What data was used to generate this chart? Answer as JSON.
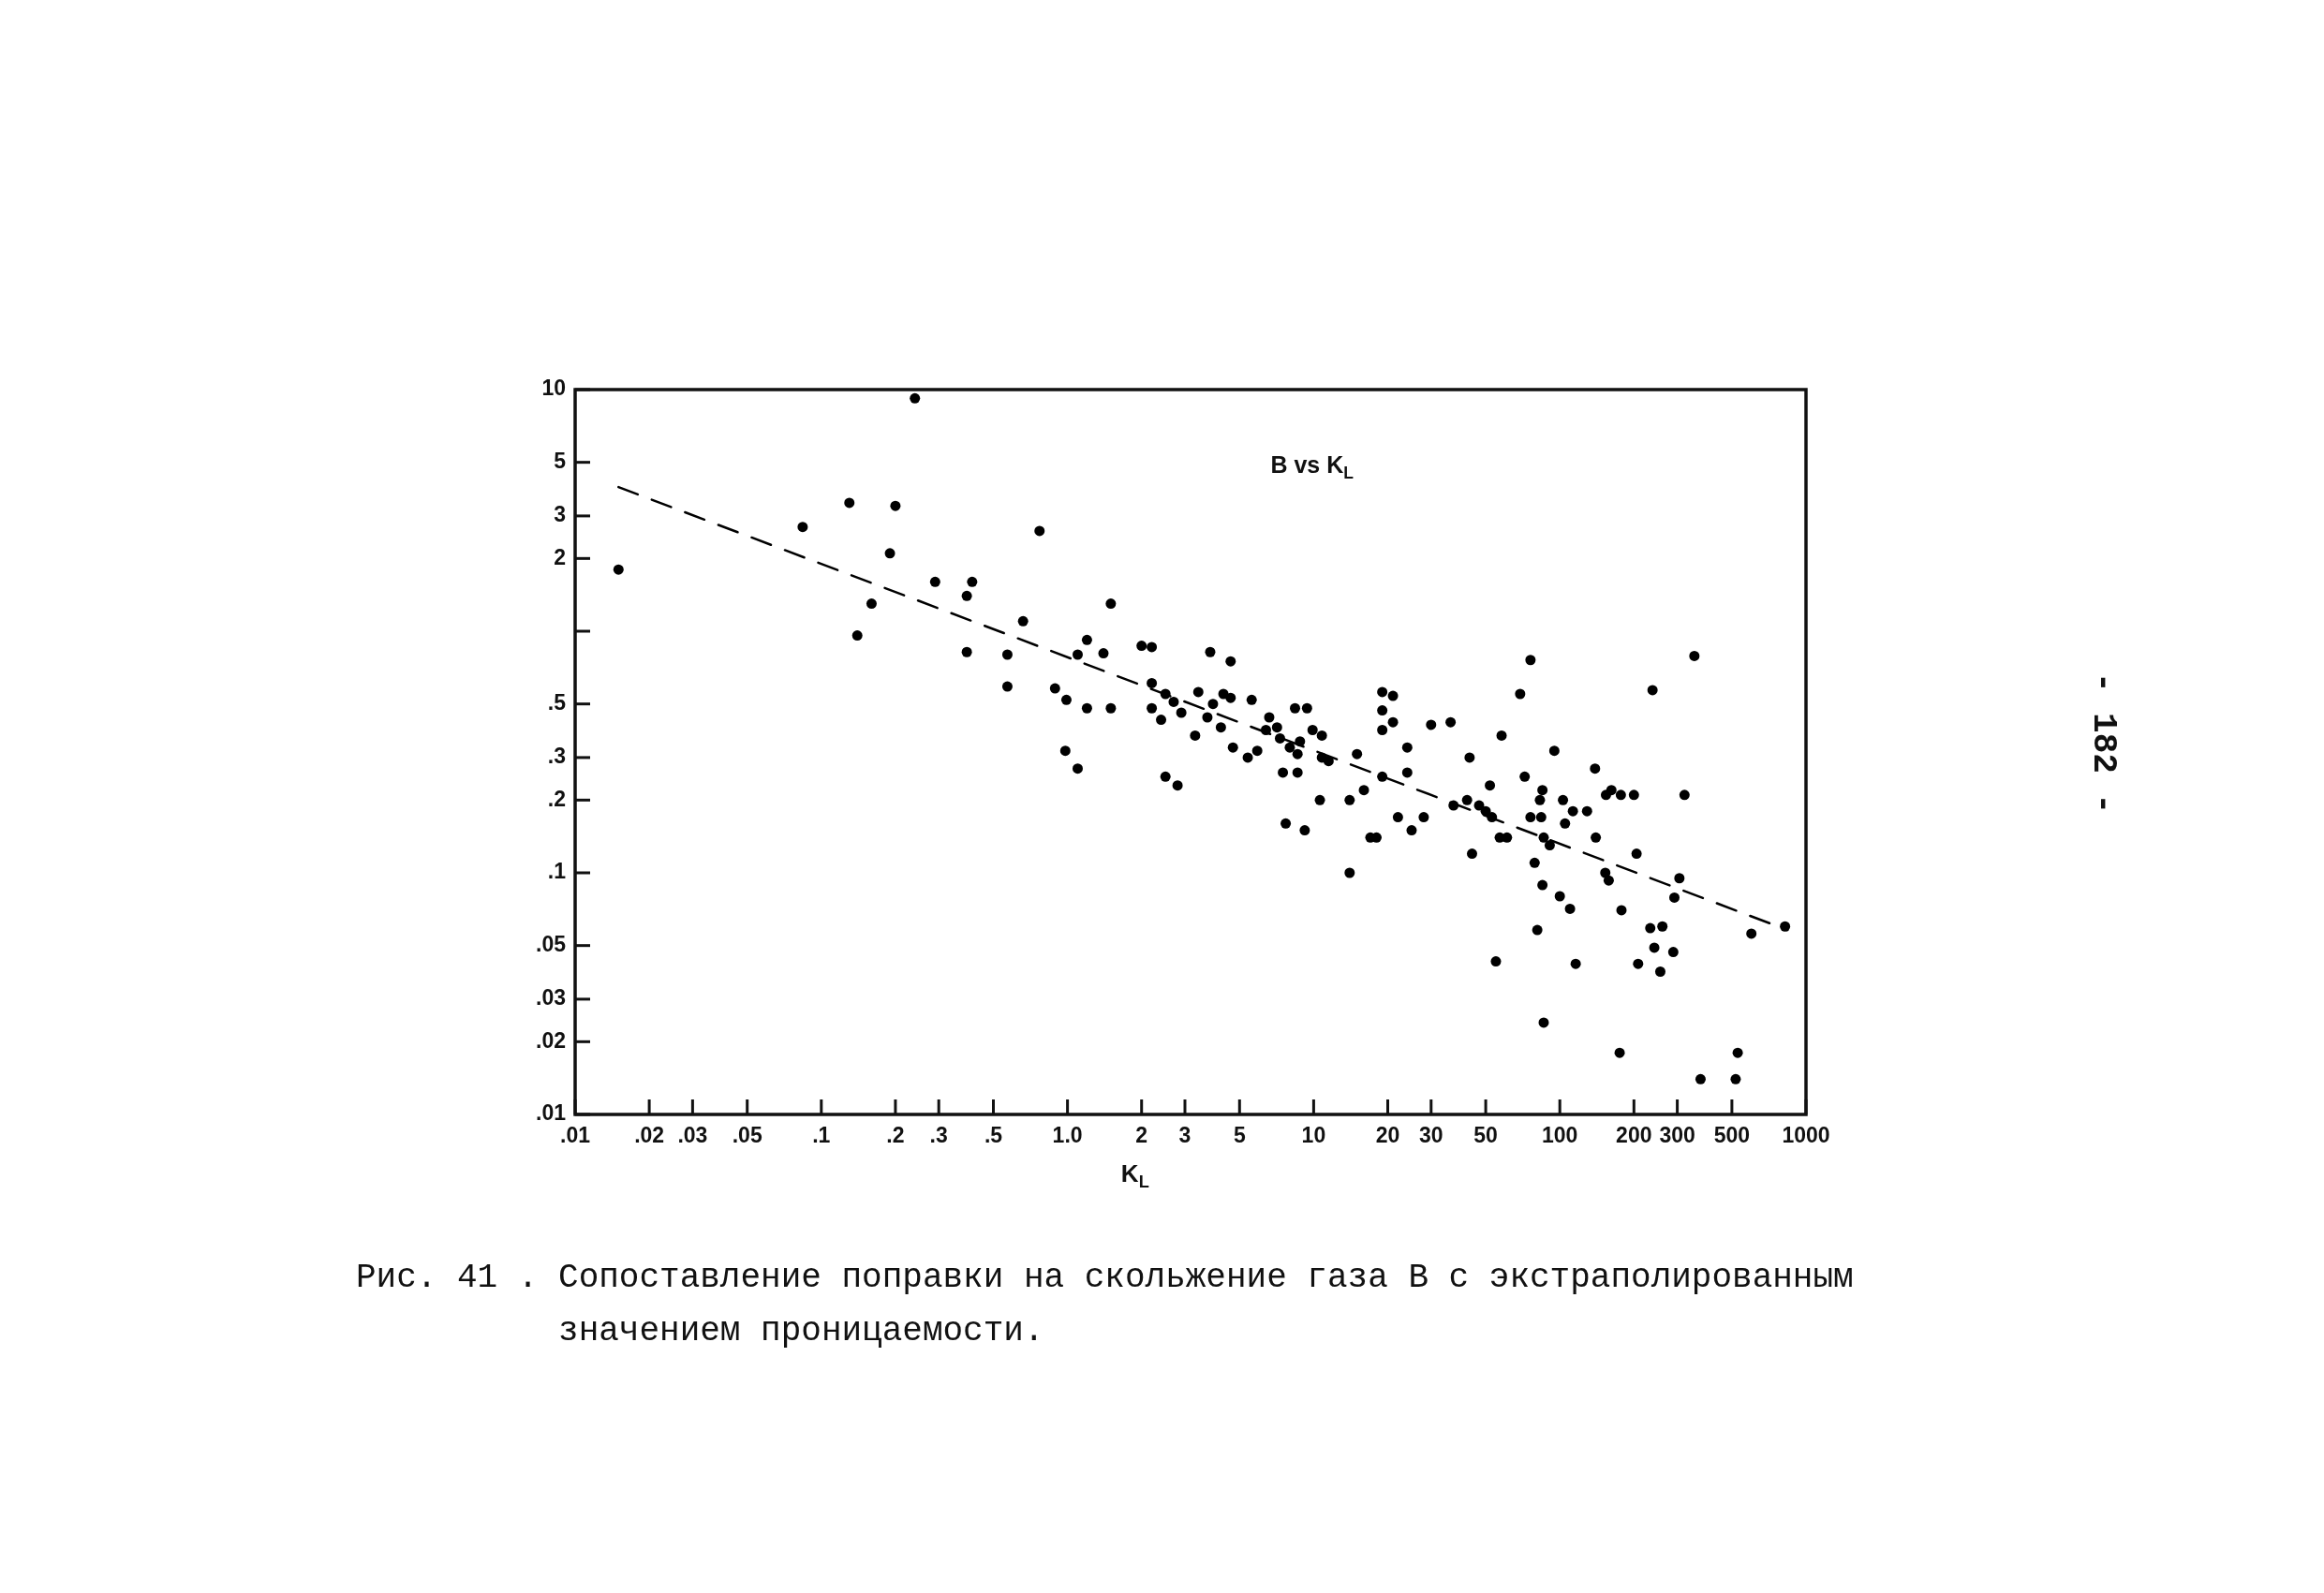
{
  "chart_data": {
    "type": "scatter",
    "xlabel": "K$_{L}$",
    "annotations": [
      "B vs K$_{L}$",
      "Рис. 41 . Сопоставление поправки на скольжение газа В с экстраполированным значением проницаемости.",
      "- 182 -"
    ],
    "log": "xy",
    "xlim": [
      0.01,
      1000
    ],
    "ylim": [
      0.01,
      10
    ],
    "xticks": [
      {
        "value": 0.01,
        "label": ".01"
      },
      {
        "value": 0.02,
        "label": ".02"
      },
      {
        "value": 0.03,
        "label": ".03"
      },
      {
        "value": 0.05,
        "label": ".05"
      },
      {
        "value": 0.1,
        "label": ".1"
      },
      {
        "value": 0.2,
        "label": ".2"
      },
      {
        "value": 0.3,
        "label": ".3"
      },
      {
        "value": 0.5,
        "label": ".5"
      },
      {
        "value": 1,
        "label": "1.0"
      },
      2,
      3,
      5,
      10,
      20,
      30,
      50,
      100,
      200,
      300,
      500,
      1000
    ],
    "yticks": [
      {
        "value": 0.01,
        "label": ".01"
      },
      {
        "value": 0.02,
        "label": ".02"
      },
      {
        "value": 0.03,
        "label": ".03"
      },
      {
        "value": 0.05,
        "label": ".05"
      },
      {
        "value": 0.1,
        "label": ".1"
      },
      {
        "value": 0.2,
        "label": ".2"
      },
      {
        "value": 0.3,
        "label": ".3"
      },
      {
        "value": 0.5,
        "label": ".5"
      },
      {
        "value": 1,
        "label": null
      },
      2,
      3,
      5,
      10
    ],
    "marker": "circle",
    "series": [
      {
        "color": "#000000",
        "x": [
          0.015,
          0.084,
          0.13,
          0.2,
          0.19,
          0.14,
          0.16,
          0.29,
          0.41,
          0.39,
          0.77,
          0.39,
          0.57,
          0.57,
          0.66,
          0.89,
          0.99,
          1.1,
          1.2,
          1.4,
          1.5,
          1.2,
          1.5,
          0.98,
          1.1,
          2,
          2.2,
          2.2,
          2.2,
          2.4,
          2.5,
          2.7,
          2.9,
          2.5,
          2.8,
          3.3,
          3.4,
          3.8,
          3.9,
          3.7,
          4.2,
          4.3,
          4.6,
          4.6,
          4.7,
          5.4,
          5.6,
          5.9,
          6.6,
          6.4,
          7.1,
          7.3,
          8,
          7.5,
          8.6,
          7.7,
          9.2,
          8.4,
          9.4,
          8.8,
          8.6,
          9.9,
          10.8,
          10.6,
          10.8,
          11.5,
          0.24,
          15,
          14,
          16,
          14,
          17,
          18,
          19,
          19,
          21,
          19,
          21,
          24,
          24,
          19,
          22,
          25,
          28,
          30,
          36,
          37,
          42,
          43,
          44,
          47,
          50,
          53,
          52,
          58,
          57,
          61,
          55,
          69,
          76,
          72,
          76,
          84,
          83,
          85,
          86,
          91,
          79,
          85,
          81,
          86,
          95,
          103,
          105,
          113,
          100,
          110,
          116,
          129,
          139,
          140,
          154,
          162,
          177,
          200,
          153,
          158,
          178,
          205,
          208,
          175,
          238,
          233,
          261,
          242,
          289,
          256,
          306,
          292,
          321,
          352,
          373,
          518,
          528,
          600,
          822
        ],
        "values": [
          1.8,
          2.7,
          3.4,
          3.3,
          2.1,
          0.96,
          1.3,
          1.6,
          1.6,
          1.4,
          2.6,
          0.82,
          0.8,
          0.59,
          1.1,
          0.58,
          0.52,
          0.8,
          0.92,
          0.81,
          1.3,
          0.48,
          0.48,
          0.32,
          0.27,
          0.87,
          0.86,
          0.61,
          0.48,
          0.43,
          0.55,
          0.51,
          0.46,
          0.25,
          0.23,
          0.37,
          0.56,
          0.82,
          0.5,
          0.44,
          0.4,
          0.55,
          0.53,
          0.75,
          0.33,
          0.3,
          0.52,
          0.32,
          0.44,
          0.39,
          0.4,
          0.36,
          0.33,
          0.26,
          0.26,
          0.16,
          0.15,
          0.48,
          0.48,
          0.35,
          0.31,
          0.39,
          0.37,
          0.2,
          0.3,
          0.29,
          9.2,
          0.31,
          0.2,
          0.22,
          0.1,
          0.14,
          0.14,
          0.56,
          0.47,
          0.54,
          0.39,
          0.42,
          0.33,
          0.26,
          0.25,
          0.17,
          0.15,
          0.17,
          0.41,
          0.42,
          0.19,
          0.2,
          0.3,
          0.12,
          0.19,
          0.18,
          0.17,
          0.23,
          0.37,
          0.14,
          0.14,
          0.043,
          0.55,
          0.76,
          0.25,
          0.17,
          0.17,
          0.2,
          0.22,
          0.14,
          0.13,
          0.11,
          0.089,
          0.058,
          0.024,
          0.32,
          0.2,
          0.16,
          0.18,
          0.08,
          0.071,
          0.042,
          0.18,
          0.27,
          0.14,
          0.21,
          0.22,
          0.21,
          0.21,
          0.1,
          0.093,
          0.07,
          0.12,
          0.042,
          0.018,
          0.57,
          0.059,
          0.06,
          0.049,
          0.047,
          0.039,
          0.095,
          0.079,
          0.21,
          0.79,
          0.014,
          0.014,
          0.018,
          0.056,
          0.06
        ]
      },
      {
        "type": "line",
        "color": "#000000",
        "line_style": "dashed",
        "marker": "none",
        "x": [
          0.015,
          840
        ],
        "values": [
          3.95,
          0.058
        ]
      }
    ]
  }
}
